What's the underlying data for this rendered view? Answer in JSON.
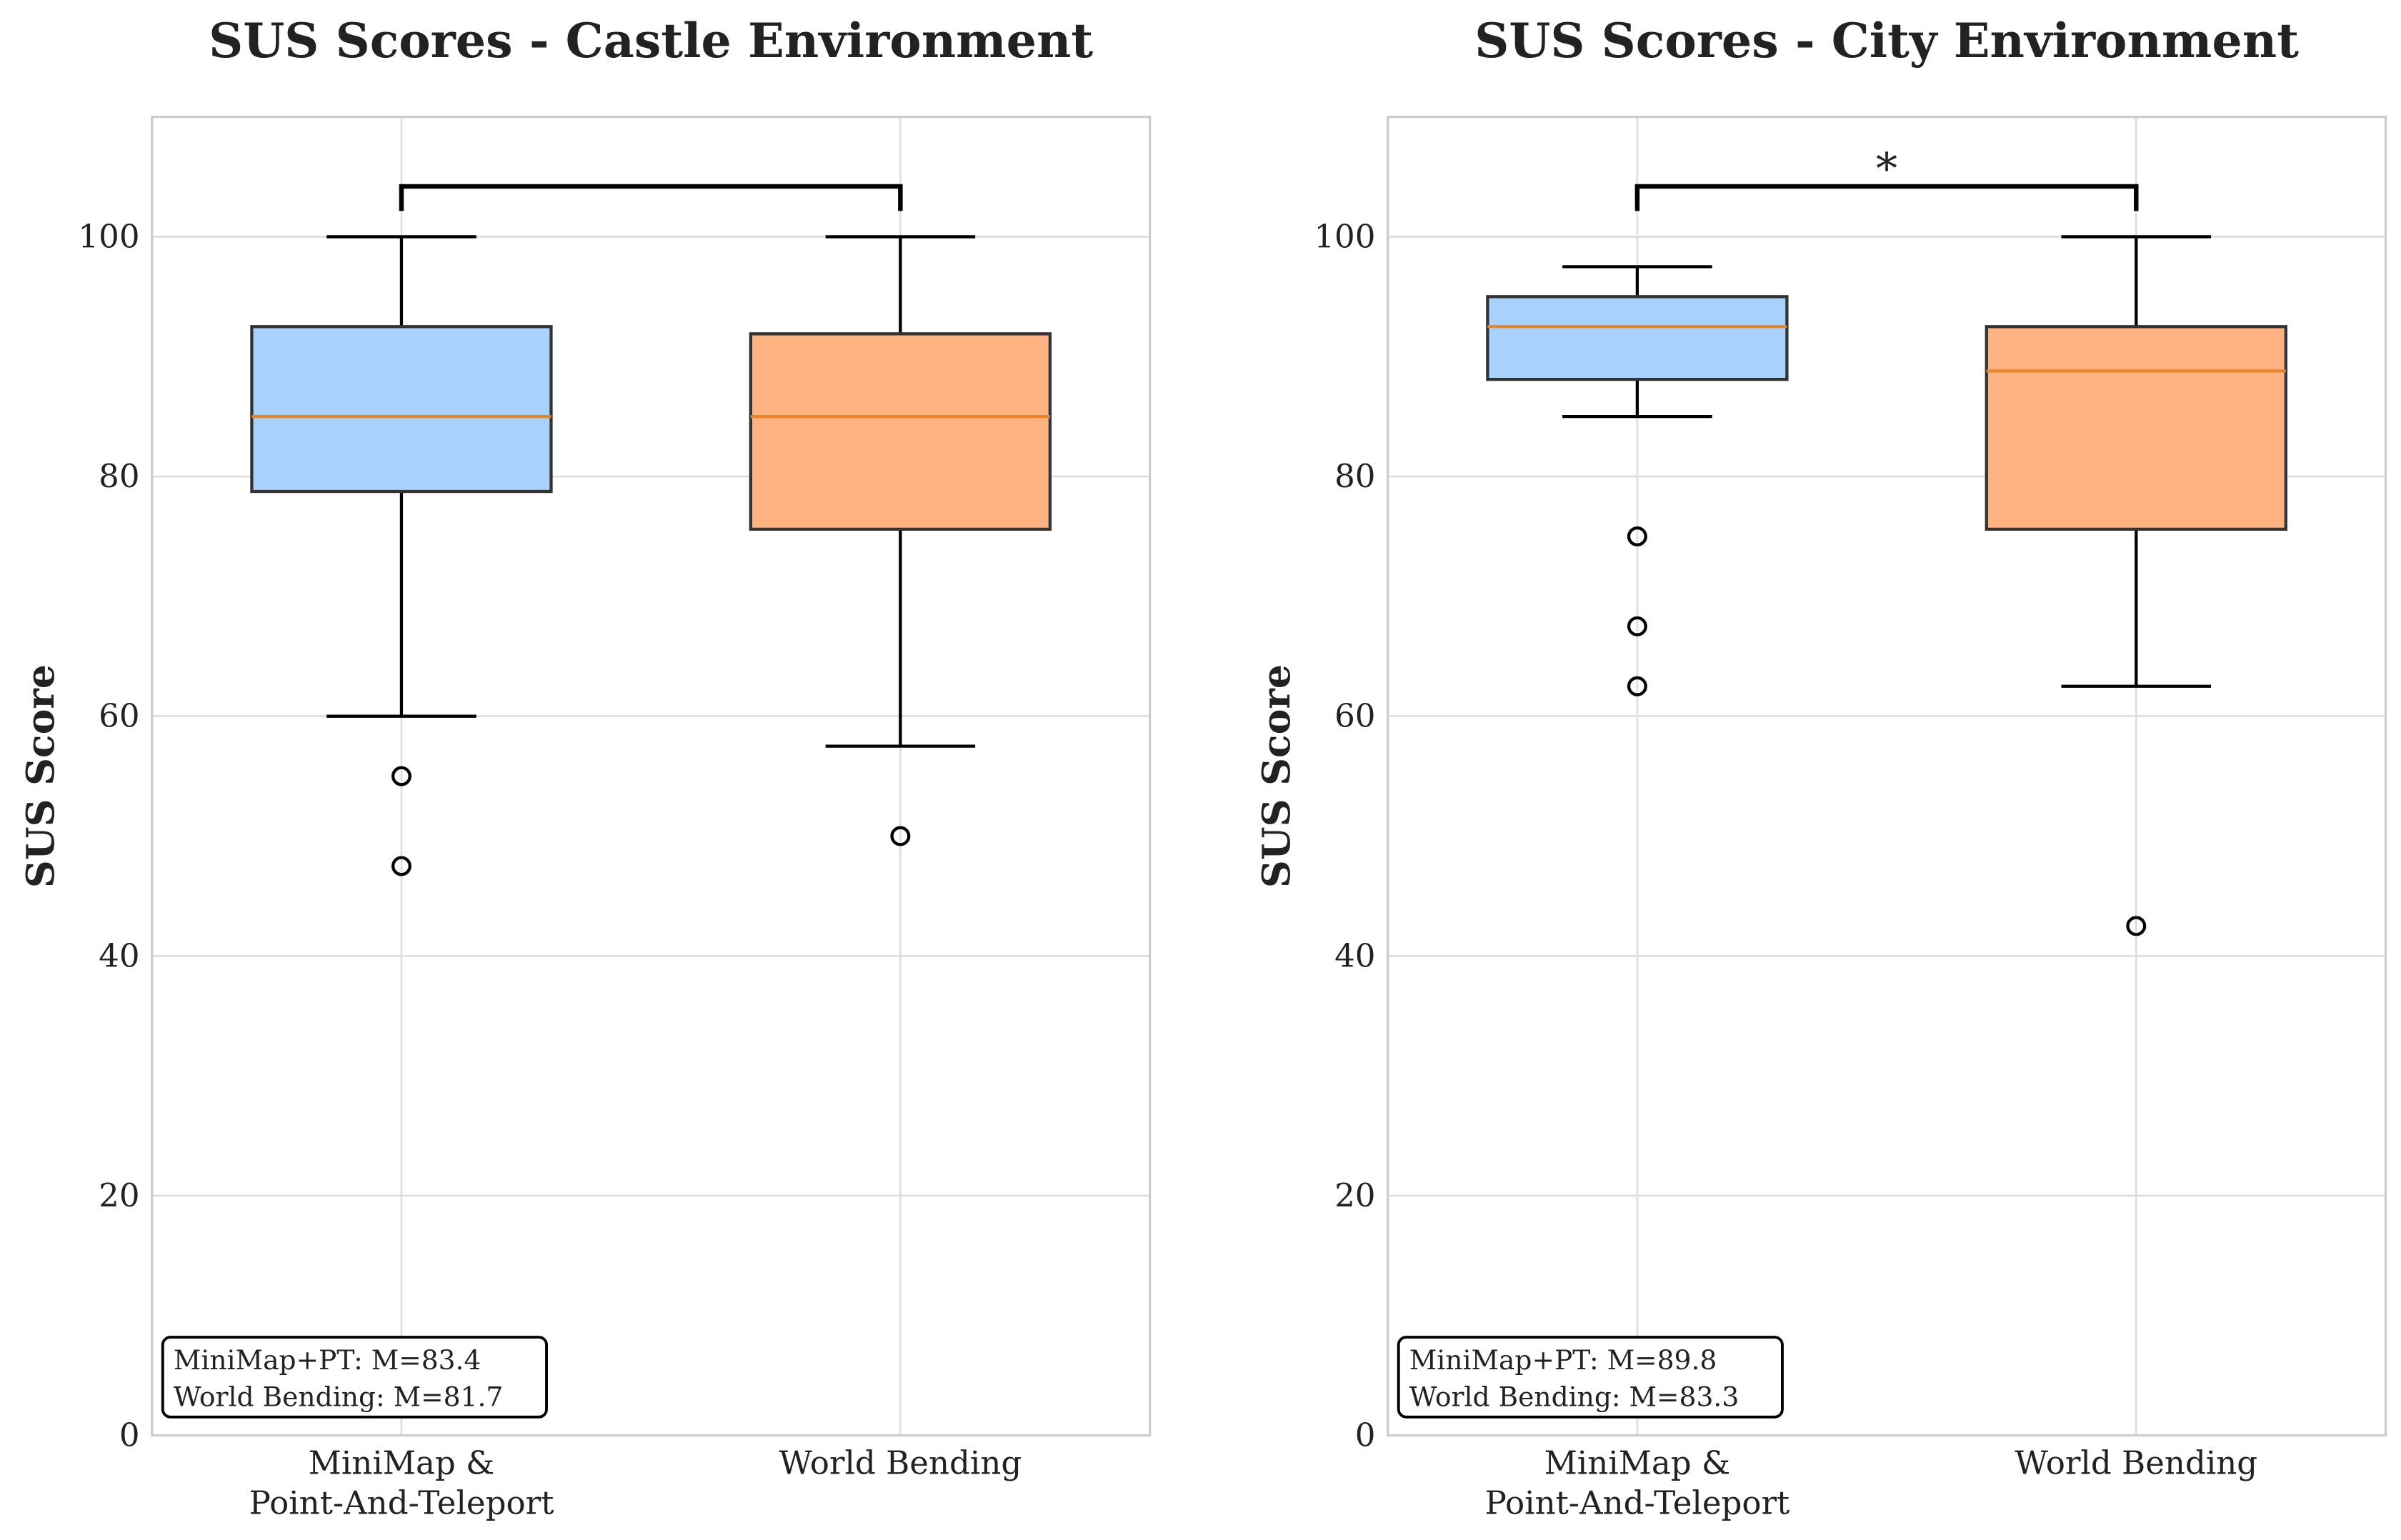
{
  "chart_data": [
    {
      "type": "box",
      "title": "SUS Scores - Castle Environment",
      "ylabel": "SUS Score",
      "categories": [
        "MiniMap &\nPoint-And-Teleport",
        "World Bending"
      ],
      "colors": [
        "#a8d1fb",
        "#fdb27f"
      ],
      "median_color": "#e8842a",
      "boxes": [
        {
          "whislo": 60,
          "q1": 78.75,
          "median": 85,
          "q3": 92.5,
          "whishi": 100,
          "fliers": [
            55,
            47.5
          ]
        },
        {
          "whislo": 57.5,
          "q1": 75.6,
          "median": 85,
          "q3": 91.9,
          "whishi": 100,
          "fliers": [
            50
          ]
        }
      ],
      "ylim": [
        0,
        110
      ],
      "yticks": [
        0,
        20,
        40,
        60,
        80,
        100
      ],
      "grid": true,
      "bracket": {
        "y": 104.2
      },
      "stats_text": [
        "MiniMap+PT: M=83.4",
        "World Bending: M=81.7"
      ]
    },
    {
      "type": "box",
      "title": "SUS Scores - City Environment",
      "ylabel": "SUS Score",
      "categories": [
        "MiniMap &\nPoint-And-Teleport",
        "World Bending"
      ],
      "colors": [
        "#a8d1fb",
        "#fdb27f"
      ],
      "median_color": "#e8842a",
      "boxes": [
        {
          "whislo": 85,
          "q1": 88.1,
          "median": 92.5,
          "q3": 95,
          "whishi": 97.5,
          "fliers": [
            75,
            67.5,
            62.5
          ]
        },
        {
          "whislo": 62.5,
          "q1": 75.6,
          "median": 88.8,
          "q3": 92.5,
          "whishi": 100,
          "fliers": [
            42.5
          ]
        }
      ],
      "ylim": [
        0,
        110
      ],
      "yticks": [
        0,
        20,
        40,
        60,
        80,
        100
      ],
      "grid": true,
      "bracket": {
        "y": 104.2,
        "label": "*"
      },
      "stats_text": [
        "MiniMap+PT: M=89.8",
        "World Bending: M=83.3"
      ]
    }
  ]
}
